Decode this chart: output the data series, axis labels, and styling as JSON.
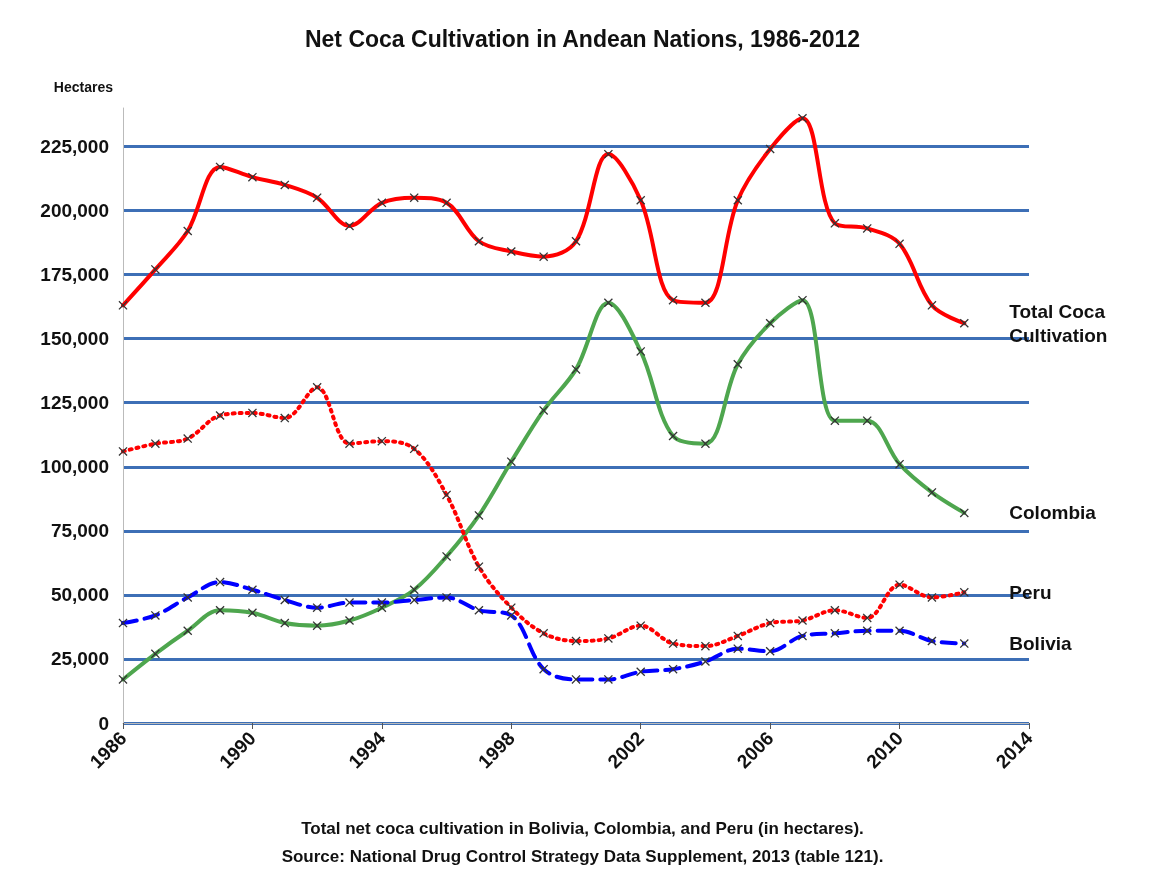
{
  "chart_data": {
    "type": "line",
    "title": "Net Coca Cultivation in Andean Nations, 1986-2012",
    "ylabel": "Hectares",
    "annotations": [
      "Total net coca cultivation in Bolivia, Colombia, and Peru (in hectares).",
      "Source: National Drug Control Strategy Data Supplement, 2013 (table 121)."
    ],
    "x": [
      1986,
      1987,
      1988,
      1989,
      1990,
      1991,
      1992,
      1993,
      1994,
      1995,
      1996,
      1997,
      1998,
      1999,
      2000,
      2001,
      2002,
      2003,
      2004,
      2005,
      2006,
      2007,
      2008,
      2009,
      2010,
      2011,
      2012
    ],
    "series": [
      {
        "name": "Total Coca Cultivation",
        "color": "#ff0000",
        "line_style": "solid",
        "values": [
          163000,
          177000,
          192000,
          217000,
          213000,
          210000,
          205000,
          194000,
          203000,
          205000,
          203000,
          188000,
          184000,
          182000,
          188000,
          222000,
          204000,
          165000,
          164000,
          204000,
          224000,
          236000,
          195000,
          193000,
          187000,
          163000,
          156000
        ]
      },
      {
        "name": "Colombia",
        "color": "#4ea64e",
        "line_style": "solid",
        "values": [
          17000,
          27000,
          36000,
          44000,
          43000,
          39000,
          38000,
          40000,
          45000,
          52000,
          65000,
          81000,
          102000,
          122000,
          138000,
          164000,
          145000,
          112000,
          109000,
          140000,
          156000,
          165000,
          118000,
          118000,
          101000,
          90000,
          82000
        ]
      },
      {
        "name": "Peru",
        "color": "#ff0000",
        "line_style": "dotted",
        "values": [
          106000,
          109000,
          111000,
          120000,
          121000,
          119000,
          131000,
          109000,
          110000,
          107000,
          89000,
          61000,
          45000,
          35000,
          32000,
          33000,
          38000,
          31000,
          30000,
          34000,
          39000,
          40000,
          44000,
          41000,
          54000,
          49000,
          51000
        ]
      },
      {
        "name": "Bolivia",
        "color": "#0000ff",
        "line_style": "dashed",
        "values": [
          39000,
          42000,
          49000,
          55000,
          52000,
          48000,
          45000,
          47000,
          47000,
          48000,
          49000,
          44000,
          42000,
          21000,
          17000,
          17000,
          20000,
          21000,
          24000,
          29000,
          28000,
          34000,
          35000,
          36000,
          36000,
          32000,
          31000
        ]
      }
    ],
    "xlim": [
      1986,
      2014
    ],
    "xticks": [
      1986,
      1990,
      1994,
      1998,
      2002,
      2006,
      2010,
      2014
    ],
    "ylim": [
      0,
      240000
    ],
    "yticks": [
      0,
      {
        "value": 25000,
        "label": "25,000"
      },
      {
        "value": 50000,
        "label": "50,000"
      },
      {
        "value": 75000,
        "label": "75,000"
      },
      {
        "value": 100000,
        "label": "100,000"
      },
      {
        "value": 125000,
        "label": "125,000"
      },
      {
        "value": 150000,
        "label": "150,000"
      },
      {
        "value": 175000,
        "label": "175,000"
      },
      {
        "value": 200000,
        "label": "200,000"
      },
      {
        "value": 225000,
        "label": "225,000"
      }
    ],
    "grid": "y",
    "marker": "cross",
    "legend": false
  }
}
